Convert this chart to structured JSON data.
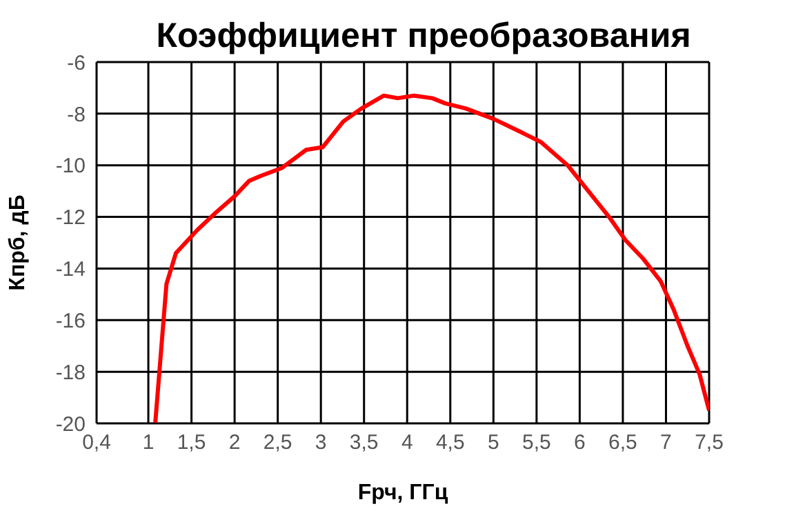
{
  "chart_data": {
    "type": "line",
    "title": "Коэффициент преобразования",
    "xlabel": "Fрч, ГГц",
    "ylabel": "Кпрб, дБ",
    "x": [
      1.08,
      1.21,
      1.32,
      1.57,
      1.76,
      2.0,
      2.17,
      2.31,
      2.55,
      2.83,
      3.02,
      3.26,
      3.47,
      3.73,
      3.89,
      4.08,
      4.29,
      4.44,
      4.68,
      5.0,
      5.31,
      5.55,
      5.86,
      6.1,
      6.34,
      6.53,
      6.73,
      6.94,
      7.09,
      7.25,
      7.39,
      7.5
    ],
    "series": [
      {
        "color": "#ff0000",
        "values": [
          -20,
          -14.6,
          -13.4,
          -12.5,
          -11.9,
          -11.2,
          -10.6,
          -10.4,
          -10.1,
          -9.4,
          -9.3,
          -8.3,
          -7.8,
          -7.3,
          -7.4,
          -7.3,
          -7.4,
          -7.6,
          -7.8,
          -8.2,
          -8.7,
          -9.1,
          -10.0,
          -11.0,
          -12.0,
          -12.9,
          -13.6,
          -14.5,
          -15.6,
          -17.0,
          -18.1,
          -19.5
        ]
      }
    ],
    "xlim": [
      0.4,
      7.5
    ],
    "xticks": [
      {
        "value": 0.4,
        "label": "0,4"
      },
      1,
      {
        "value": 1.5,
        "label": "1,5"
      },
      2,
      {
        "value": 2.5,
        "label": "2,5"
      },
      3,
      {
        "value": 3.5,
        "label": "3,5"
      },
      4,
      {
        "value": 4.5,
        "label": "4,5"
      },
      5,
      {
        "value": 5.5,
        "label": "5,5"
      },
      6,
      {
        "value": 6.5,
        "label": "6,5"
      },
      7,
      {
        "value": 7.5,
        "label": "7,5"
      }
    ],
    "ylim": [
      -20,
      -6
    ],
    "yticks": [
      -20,
      -18,
      -16,
      -14,
      -12,
      -10,
      -8,
      -6
    ],
    "grid": true,
    "legend": false,
    "marker": "none",
    "line_style": "solid"
  }
}
